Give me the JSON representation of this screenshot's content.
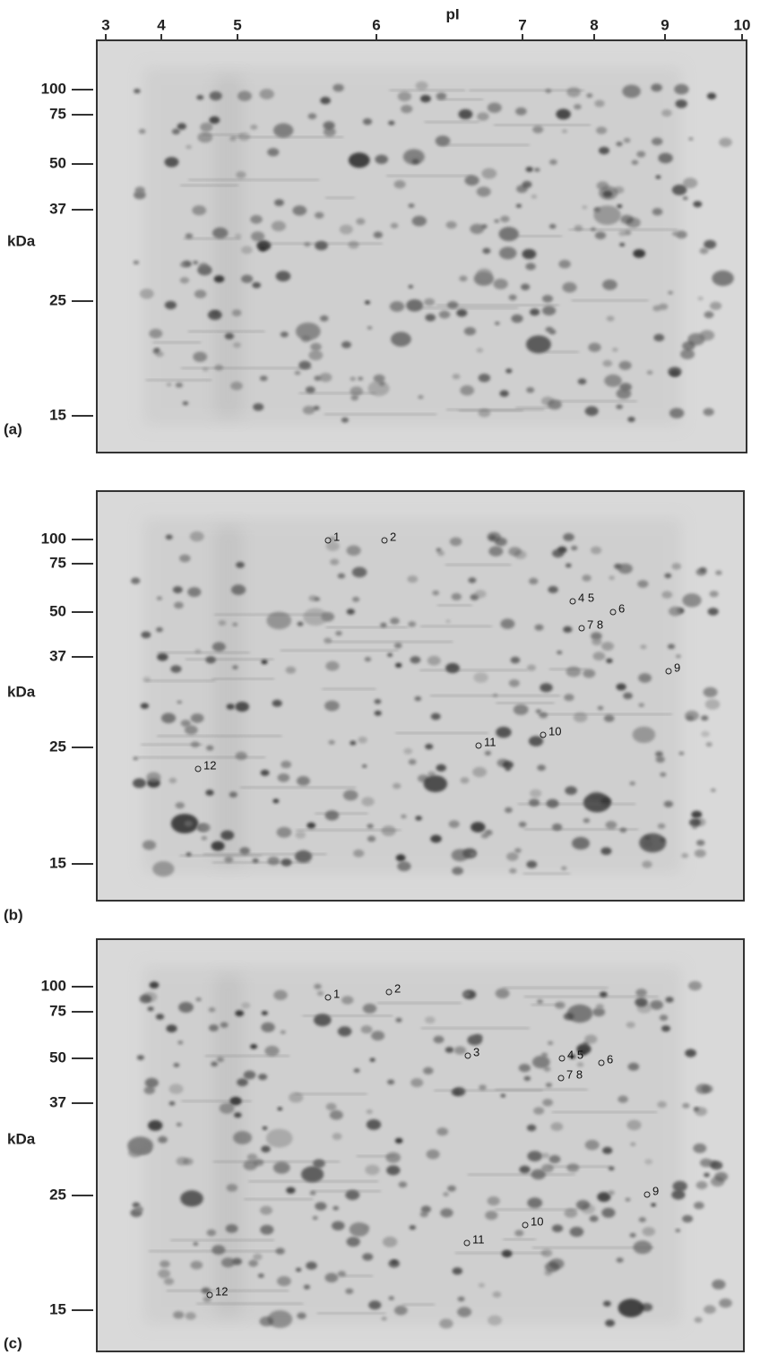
{
  "axis": {
    "title": "pI",
    "ticks": [
      "3",
      "4",
      "5",
      "6",
      "7",
      "8",
      "9",
      "10"
    ]
  },
  "panels": [
    {
      "label": "(a)",
      "y_axis": {
        "title": "kDa",
        "ticks": [
          "100",
          "75",
          "50",
          "37",
          "25",
          "15"
        ]
      }
    },
    {
      "label": "(b)",
      "y_axis": {
        "title": "kDa",
        "ticks": [
          "100",
          "75",
          "50",
          "37",
          "25",
          "15"
        ]
      },
      "spots": [
        "1",
        "2",
        "4 5",
        "6",
        "7 8",
        "9",
        "10",
        "11",
        "12"
      ]
    },
    {
      "label": "(c)",
      "y_axis": {
        "title": "kDa",
        "ticks": [
          "100",
          "75",
          "50",
          "37",
          "25",
          "15"
        ]
      },
      "spots": [
        "1",
        "2",
        "3",
        "4 5",
        "6",
        "7 8",
        "9",
        "10",
        "11",
        "12"
      ]
    }
  ]
}
